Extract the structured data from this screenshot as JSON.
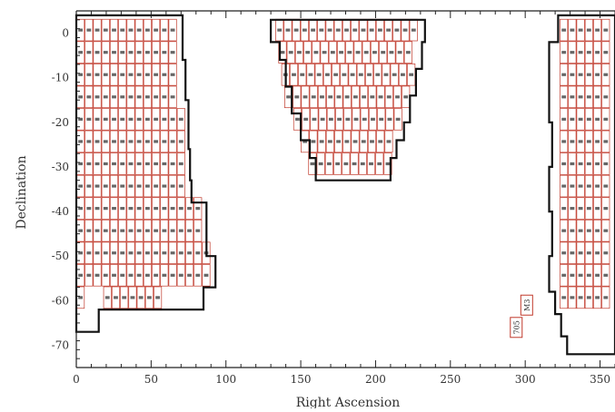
{
  "chart_data": {
    "type": "scatter",
    "title": "",
    "xlabel": "Right Ascension",
    "ylabel": "Declination",
    "xlim": [
      0,
      360
    ],
    "ylim": [
      -75,
      5
    ],
    "x_ticks": [
      "0",
      "50",
      "100",
      "150",
      "200",
      "250",
      "300",
      "350"
    ],
    "y_ticks": [
      "0",
      "-10",
      "-20",
      "-30",
      "-40",
      "-50",
      "-60",
      "-70"
    ],
    "grid": false,
    "series_colors": {
      "outline": "#111111",
      "fields": "#c0392b",
      "field_labels": "#333333"
    },
    "regions": [
      {
        "name": "left",
        "boundary": [
          [
            0,
            -67
          ],
          [
            0,
            4
          ],
          [
            71,
            4
          ],
          [
            71,
            -6
          ],
          [
            73,
            -6
          ],
          [
            73,
            -15
          ],
          [
            75,
            -15
          ],
          [
            75,
            -26
          ],
          [
            76,
            -26
          ],
          [
            76,
            -33
          ],
          [
            77,
            -33
          ],
          [
            77,
            -38
          ],
          [
            87,
            -38
          ],
          [
            87,
            -50
          ],
          [
            93,
            -50
          ],
          [
            93,
            -57
          ],
          [
            85,
            -57
          ],
          [
            85,
            -62
          ],
          [
            15,
            -62
          ],
          [
            15,
            -67
          ]
        ]
      },
      {
        "name": "middle",
        "boundary": [
          [
            130,
            3
          ],
          [
            233,
            3
          ],
          [
            233,
            -2
          ],
          [
            231,
            -2
          ],
          [
            231,
            -8
          ],
          [
            227,
            -8
          ],
          [
            227,
            -14
          ],
          [
            223,
            -14
          ],
          [
            223,
            -20
          ],
          [
            219,
            -20
          ],
          [
            219,
            -24
          ],
          [
            214,
            -24
          ],
          [
            214,
            -28
          ],
          [
            210,
            -28
          ],
          [
            210,
            -33
          ],
          [
            160,
            -33
          ],
          [
            160,
            -28
          ],
          [
            156,
            -28
          ],
          [
            156,
            -24
          ],
          [
            150,
            -24
          ],
          [
            150,
            -18
          ],
          [
            144,
            -18
          ],
          [
            144,
            -12
          ],
          [
            140,
            -12
          ],
          [
            140,
            -6
          ],
          [
            136,
            -6
          ],
          [
            136,
            -2
          ],
          [
            130,
            -2
          ]
        ]
      },
      {
        "name": "right",
        "boundary": [
          [
            360,
            4
          ],
          [
            322,
            4
          ],
          [
            322,
            -2
          ],
          [
            316,
            -2
          ],
          [
            316,
            -20
          ],
          [
            318,
            -20
          ],
          [
            318,
            -30
          ],
          [
            316,
            -30
          ],
          [
            316,
            -40
          ],
          [
            318,
            -40
          ],
          [
            318,
            -50
          ],
          [
            316,
            -50
          ],
          [
            316,
            -58
          ],
          [
            320,
            -58
          ],
          [
            320,
            -63
          ],
          [
            324,
            -63
          ],
          [
            324,
            -68
          ],
          [
            328,
            -68
          ],
          [
            328,
            -72
          ],
          [
            360,
            -72
          ]
        ]
      }
    ],
    "field_rows": [
      {
        "dec": 0,
        "ranges": [
          [
            0,
            70
          ],
          [
            133,
            231
          ],
          [
            323,
            360
          ]
        ]
      },
      {
        "dec": -5,
        "ranges": [
          [
            0,
            70
          ],
          [
            135,
            230
          ],
          [
            323,
            360
          ]
        ]
      },
      {
        "dec": -10,
        "ranges": [
          [
            0,
            72
          ],
          [
            137,
            228
          ],
          [
            323,
            360
          ]
        ]
      },
      {
        "dec": -15,
        "ranges": [
          [
            0,
            72
          ],
          [
            139,
            224
          ],
          [
            323,
            360
          ]
        ]
      },
      {
        "dec": -20,
        "ranges": [
          [
            0,
            74
          ],
          [
            145,
            220
          ],
          [
            323,
            360
          ]
        ]
      },
      {
        "dec": -25,
        "ranges": [
          [
            0,
            75
          ],
          [
            150,
            216
          ],
          [
            323,
            360
          ]
        ]
      },
      {
        "dec": -30,
        "ranges": [
          [
            0,
            76
          ],
          [
            155,
            211
          ],
          [
            323,
            360
          ]
        ]
      },
      {
        "dec": -35,
        "ranges": [
          [
            0,
            76
          ],
          [
            323,
            360
          ]
        ]
      },
      {
        "dec": -40,
        "ranges": [
          [
            0,
            86
          ],
          [
            323,
            360
          ]
        ]
      },
      {
        "dec": -45,
        "ranges": [
          [
            0,
            86
          ],
          [
            323,
            360
          ]
        ]
      },
      {
        "dec": -50,
        "ranges": [
          [
            0,
            92
          ],
          [
            323,
            360
          ]
        ]
      },
      {
        "dec": -55,
        "ranges": [
          [
            0,
            92
          ],
          [
            323,
            360
          ]
        ]
      },
      {
        "dec": -60,
        "ranges": [
          [
            0,
            10
          ],
          [
            18,
            62
          ],
          [
            323,
            360
          ]
        ]
      }
    ],
    "isolated_fields": [
      {
        "x": 301,
        "y": -61,
        "label": "M3",
        "rotation": 90
      },
      {
        "x": 294,
        "y": -66,
        "label": "705",
        "rotation": 90
      }
    ]
  }
}
